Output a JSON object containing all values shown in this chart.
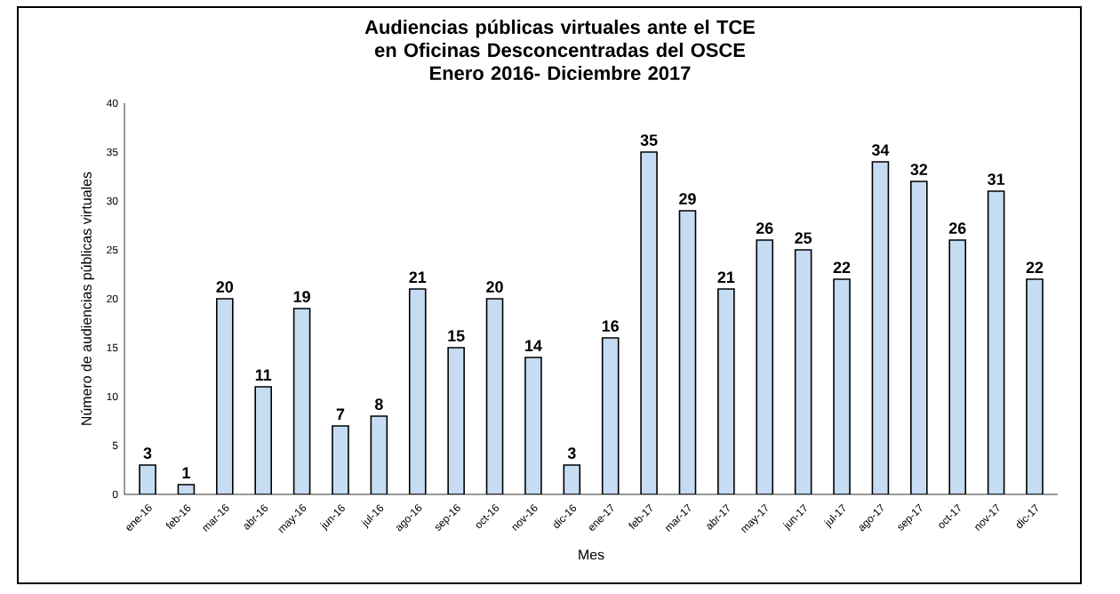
{
  "chart_data": {
    "type": "bar",
    "title": "Audiencias públicas virtuales ante el TCE en Oficinas Desconcentradas del OSCE",
    "subtitle": "Enero 2016- Diciembre 2017",
    "xlabel": "Mes",
    "ylabel": "Número de audiencias públicas virtuales",
    "categories": [
      "ene-16",
      "feb-16",
      "mar-16",
      "abr-16",
      "may-16",
      "jun-16",
      "jul-16",
      "ago-16",
      "sep-16",
      "oct-16",
      "nov-16",
      "dic-16",
      "ene-17",
      "feb-17",
      "mar-17",
      "abr-17",
      "may-17",
      "jun-17",
      "jul-17",
      "ago-17",
      "sep-17",
      "oct-17",
      "nov-17",
      "dic-17"
    ],
    "values": [
      3,
      1,
      20,
      11,
      19,
      7,
      8,
      21,
      15,
      20,
      14,
      3,
      16,
      35,
      29,
      21,
      26,
      25,
      22,
      34,
      32,
      26,
      31,
      22
    ],
    "color": "#c5dcf3",
    "ylim": [
      0,
      40
    ],
    "yticks": [
      0,
      5,
      10,
      15,
      20,
      25,
      30,
      35,
      40
    ],
    "data_labels": true
  }
}
